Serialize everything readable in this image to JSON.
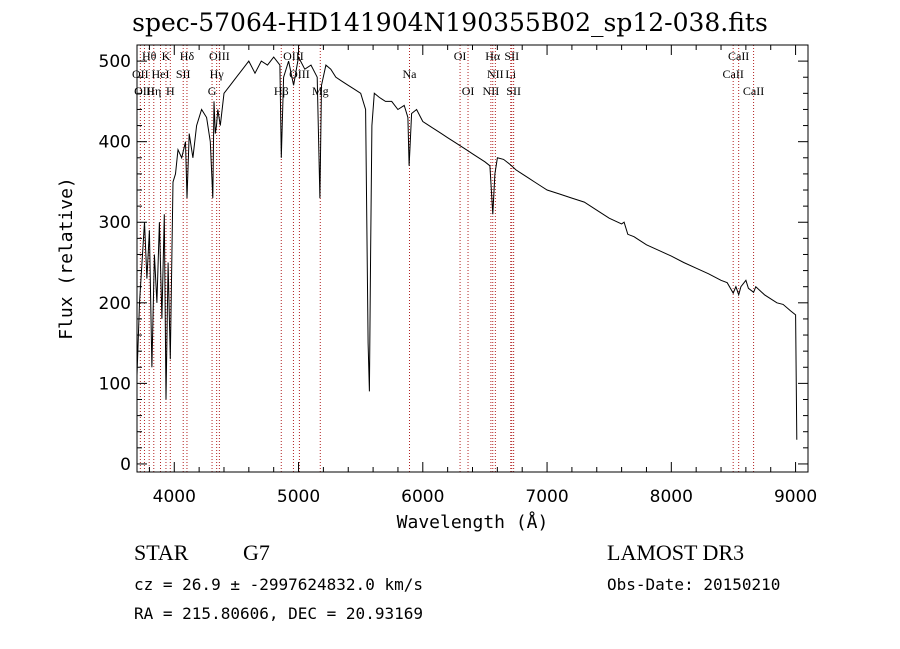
{
  "chart_data": {
    "type": "line",
    "title": "spec-57064-HD141904N190355B02_sp12-038.fits",
    "xlabel": "Wavelength (Å)",
    "ylabel": "Flux (relative)",
    "xlim": [
      3700,
      9100
    ],
    "ylim": [
      -10,
      520
    ],
    "xticks": [
      4000,
      5000,
      6000,
      7000,
      8000,
      9000
    ],
    "yticks": [
      0,
      100,
      200,
      300,
      400,
      500
    ],
    "series": [
      {
        "name": "flux",
        "x": [
          3700,
          3720,
          3740,
          3760,
          3780,
          3800,
          3820,
          3840,
          3860,
          3880,
          3900,
          3920,
          3933,
          3950,
          3968,
          3990,
          4010,
          4030,
          4060,
          4090,
          4102,
          4120,
          4150,
          4180,
          4220,
          4260,
          4290,
          4310,
          4320,
          4330,
          4340,
          4350,
          4370,
          4400,
          4450,
          4500,
          4550,
          4600,
          4650,
          4700,
          4750,
          4800,
          4850,
          4861,
          4880,
          4920,
          4960,
          5000,
          5050,
          5100,
          5150,
          5172,
          5185,
          5220,
          5260,
          5300,
          5350,
          5400,
          5450,
          5500,
          5540,
          5560,
          5570,
          5580,
          5590,
          5610,
          5650,
          5700,
          5750,
          5800,
          5850,
          5880,
          5890,
          5896,
          5910,
          5950,
          6000,
          6050,
          6100,
          6150,
          6200,
          6250,
          6300,
          6350,
          6400,
          6450,
          6500,
          6540,
          6563,
          6580,
          6600,
          6650,
          6700,
          6750,
          6800,
          6850,
          6900,
          6950,
          7000,
          7100,
          7200,
          7300,
          7400,
          7500,
          7600,
          7620,
          7650,
          7700,
          7800,
          7900,
          8000,
          8100,
          8200,
          8300,
          8400,
          8450,
          8498,
          8520,
          8542,
          8560,
          8600,
          8620,
          8662,
          8680,
          8750,
          8800,
          8850,
          8900,
          8960,
          9000,
          9010
        ],
        "y": [
          110,
          200,
          250,
          300,
          230,
          290,
          120,
          260,
          200,
          300,
          180,
          310,
          80,
          250,
          130,
          350,
          360,
          390,
          380,
          400,
          330,
          410,
          380,
          420,
          440,
          430,
          400,
          330,
          450,
          410,
          420,
          440,
          420,
          460,
          470,
          480,
          490,
          500,
          485,
          500,
          495,
          505,
          495,
          380,
          480,
          500,
          470,
          505,
          490,
          495,
          480,
          330,
          470,
          495,
          490,
          480,
          475,
          470,
          465,
          460,
          440,
          150,
          90,
          260,
          420,
          460,
          455,
          450,
          450,
          440,
          445,
          430,
          370,
          390,
          435,
          440,
          425,
          420,
          415,
          410,
          405,
          400,
          395,
          390,
          385,
          380,
          375,
          370,
          310,
          360,
          380,
          378,
          372,
          365,
          360,
          355,
          350,
          345,
          340,
          335,
          330,
          325,
          315,
          305,
          298,
          300,
          285,
          282,
          272,
          265,
          258,
          250,
          243,
          236,
          228,
          225,
          212,
          220,
          210,
          220,
          228,
          218,
          213,
          220,
          210,
          205,
          200,
          198,
          190,
          185,
          30
        ],
        "color": "#000000"
      }
    ],
    "line_ids": [
      {
        "label": "Hθ",
        "wavelength": 3798,
        "row": 1
      },
      {
        "label": "K",
        "wavelength": 3933,
        "row": 1
      },
      {
        "label": "Hδ",
        "wavelength": 4102,
        "row": 1
      },
      {
        "label": "OIII",
        "wavelength": 4363,
        "row": 1
      },
      {
        "label": "OIII",
        "wavelength": 4959,
        "row": 1
      },
      {
        "label": "OI",
        "wavelength": 6300,
        "row": 1
      },
      {
        "label": "Hα",
        "wavelength": 6563,
        "row": 1
      },
      {
        "label": "SII",
        "wavelength": 6716,
        "row": 1
      },
      {
        "label": "CaII",
        "wavelength": 8542,
        "row": 1
      },
      {
        "label": "OII",
        "wavelength": 3727,
        "row": 2
      },
      {
        "label": "HeI",
        "wavelength": 3889,
        "row": 2
      },
      {
        "label": "SII",
        "wavelength": 4072,
        "row": 2
      },
      {
        "label": "Hγ",
        "wavelength": 4341,
        "row": 2
      },
      {
        "label": "OIII",
        "wavelength": 5007,
        "row": 2
      },
      {
        "label": "Na",
        "wavelength": 5893,
        "row": 2
      },
      {
        "label": "NII",
        "wavelength": 6584,
        "row": 2
      },
      {
        "label": "Li",
        "wavelength": 6708,
        "row": 2
      },
      {
        "label": "CaII",
        "wavelength": 8498,
        "row": 2
      },
      {
        "label": "OIII",
        "wavelength": 3760,
        "row": 3
      },
      {
        "label": "Hη",
        "wavelength": 3835,
        "row": 3
      },
      {
        "label": "H",
        "wavelength": 3968,
        "row": 3
      },
      {
        "label": "G",
        "wavelength": 4304,
        "row": 3
      },
      {
        "label": "Hβ",
        "wavelength": 4861,
        "row": 3
      },
      {
        "label": "Mg",
        "wavelength": 5175,
        "row": 3
      },
      {
        "label": "OI",
        "wavelength": 6364,
        "row": 3
      },
      {
        "label": "NII",
        "wavelength": 6548,
        "row": 3
      },
      {
        "label": "SII",
        "wavelength": 6731,
        "row": 3
      },
      {
        "label": "CaII",
        "wavelength": 8662,
        "row": 3
      }
    ]
  },
  "info": {
    "object_class": "STAR",
    "subclass": "G7",
    "cz": "cz = 26.9 ± -2997624832.0 km/s",
    "coords": "RA = 215.80606, DEC =  20.93169",
    "survey": "LAMOST DR3",
    "obs_date": "Obs-Date: 20150210"
  },
  "colors": {
    "line_marker": "#b22222",
    "spectrum": "#000000",
    "axes": "#000000"
  }
}
